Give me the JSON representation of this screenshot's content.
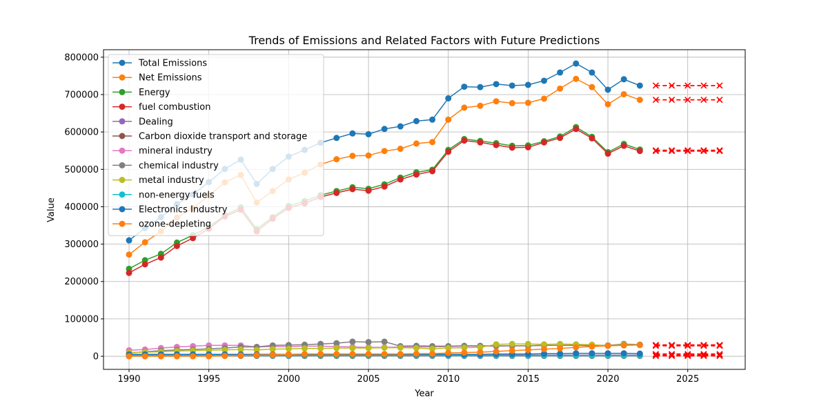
{
  "chart_data": {
    "type": "line",
    "title": "Trends of Emissions and Related Factors with Future Predictions",
    "xlabel": "Year",
    "ylabel": "Value",
    "xlim": [
      1988.4,
      2028.6
    ],
    "ylim": [
      -35000,
      820000
    ],
    "grid": true,
    "legend_position": "upper-left",
    "x_ticks": [
      1990,
      1995,
      2000,
      2005,
      2010,
      2015,
      2020,
      2025
    ],
    "y_ticks": [
      0,
      100000,
      200000,
      300000,
      400000,
      500000,
      600000,
      700000,
      800000
    ],
    "x_tick_labels": [
      "1990",
      "1995",
      "2000",
      "2005",
      "2010",
      "2015",
      "2020",
      "2025"
    ],
    "y_tick_labels": [
      "0",
      "100000",
      "200000",
      "300000",
      "400000",
      "500000",
      "600000",
      "700000",
      "800000"
    ],
    "years": [
      1990,
      1991,
      1992,
      1993,
      1994,
      1995,
      1996,
      1997,
      1998,
      1999,
      2000,
      2001,
      2002,
      2003,
      2004,
      2005,
      2006,
      2007,
      2008,
      2009,
      2010,
      2011,
      2012,
      2013,
      2014,
      2015,
      2016,
      2017,
      2018,
      2019,
      2020,
      2021,
      2022
    ],
    "prediction_years": [
      2023,
      2024,
      2025,
      2026,
      2027
    ],
    "prediction_color": "#ff0000",
    "series": [
      {
        "name": "Total Emissions",
        "color": "#1f77b4",
        "values": [
          310000,
          343000,
          372000,
          407000,
          433000,
          466000,
          501000,
          526000,
          461000,
          501000,
          534000,
          552000,
          571000,
          584000,
          596000,
          594000,
          608000,
          615000,
          629000,
          633000,
          690000,
          721000,
          720000,
          728000,
          724000,
          726000,
          737000,
          759000,
          783000,
          759000,
          713000,
          741000,
          724000
        ],
        "prediction": [
          724000,
          724000,
          724000,
          724000,
          724000
        ]
      },
      {
        "name": "Net Emissions",
        "color": "#ff7f0e",
        "values": [
          272000,
          305000,
          334000,
          371000,
          396000,
          430000,
          465000,
          485000,
          411000,
          442000,
          473000,
          491000,
          513000,
          527000,
          536000,
          537000,
          549000,
          555000,
          569000,
          573000,
          633000,
          665000,
          670000,
          682000,
          677000,
          678000,
          689000,
          716000,
          742000,
          720000,
          674000,
          701000,
          686000
        ],
        "prediction": [
          686000,
          686000,
          686000,
          686000,
          686000
        ]
      },
      {
        "name": "Energy",
        "color": "#2ca02c",
        "values": [
          234000,
          257000,
          274000,
          304000,
          324000,
          346000,
          377000,
          398000,
          340000,
          372000,
          402000,
          415000,
          431000,
          442000,
          452000,
          448000,
          460000,
          478000,
          492000,
          499000,
          552000,
          581000,
          576000,
          570000,
          563000,
          564000,
          575000,
          588000,
          613000,
          587000,
          546000,
          568000,
          553000
        ],
        "prediction": [
          551000,
          551000,
          551000,
          551000,
          551000
        ]
      },
      {
        "name": "fuel combustion",
        "color": "#d62728",
        "values": [
          223000,
          246000,
          264000,
          295000,
          316000,
          341000,
          374000,
          392000,
          334000,
          368000,
          397000,
          409000,
          426000,
          437000,
          447000,
          443000,
          454000,
          473000,
          486000,
          495000,
          547000,
          577000,
          572000,
          565000,
          558000,
          559000,
          572000,
          584000,
          608000,
          583000,
          542000,
          563000,
          549000
        ],
        "prediction": [
          549000,
          549000,
          549000,
          549000,
          549000
        ]
      },
      {
        "name": "Dealing",
        "color": "#9467bd",
        "values": [
          3000,
          3000,
          3000,
          3000,
          3000,
          3000,
          3000,
          3000,
          3000,
          3000,
          3000,
          3000,
          3000,
          3000,
          3000,
          3000,
          3000,
          3000,
          3000,
          3000,
          3000,
          3000,
          3000,
          3000,
          3000,
          3000,
          3000,
          3000,
          3000,
          3000,
          3000,
          3000,
          3000
        ],
        "prediction": [
          3000,
          3000,
          3000,
          3000,
          3000
        ]
      },
      {
        "name": "Carbon dioxide transport and storage",
        "color": "#8c564b",
        "values": [
          1000,
          1000,
          1000,
          1000,
          1000,
          1000,
          1000,
          1000,
          1000,
          1000,
          1000,
          1000,
          1000,
          1000,
          1000,
          1000,
          1000,
          1000,
          1000,
          1000,
          1000,
          1000,
          1000,
          1000,
          1000,
          1000,
          1000,
          1000,
          1000,
          1000,
          1000,
          1000,
          1000
        ],
        "prediction": [
          1000,
          1000,
          1000,
          1000,
          1000
        ]
      },
      {
        "name": "mineral industry",
        "color": "#e377c2",
        "values": [
          16000,
          18000,
          22000,
          25000,
          27000,
          29000,
          29000,
          29000,
          25000,
          26000,
          26000,
          27000,
          27000,
          26000,
          25000,
          24000,
          24000,
          25000,
          25000,
          25000,
          26000,
          27000,
          27000,
          27000,
          28000,
          28000,
          29000,
          29000,
          30000,
          30000,
          29000,
          31000,
          31000
        ],
        "prediction": [
          30000,
          30000,
          30000,
          30000,
          30000
        ]
      },
      {
        "name": "chemical industry",
        "color": "#7f7f7f",
        "values": [
          9000,
          12000,
          15000,
          17000,
          18000,
          20000,
          22000,
          25000,
          25000,
          29000,
          30000,
          31000,
          33000,
          35000,
          39000,
          38000,
          39000,
          27000,
          28000,
          27000,
          27000,
          28000,
          28000,
          28000,
          28000,
          28000,
          29000,
          29000,
          29000,
          28000,
          29000,
          33000,
          31000
        ],
        "prediction": [
          30000,
          30000,
          30000,
          30000,
          30000
        ]
      },
      {
        "name": "metal industry",
        "color": "#bcbd22",
        "values": [
          10000,
          11000,
          12000,
          14000,
          15000,
          16000,
          17000,
          18000,
          17000,
          19000,
          20000,
          21000,
          21000,
          22000,
          22000,
          22000,
          23000,
          23000,
          22000,
          20000,
          22000,
          23000,
          24000,
          32000,
          33000,
          33000,
          32000,
          33000,
          32000,
          31000,
          28000,
          31000,
          30000
        ],
        "prediction": [
          28000,
          28000,
          28000,
          28000,
          28000
        ]
      },
      {
        "name": "non-energy fuels",
        "color": "#17becf",
        "values": [
          2000,
          2000,
          2000,
          2000,
          2000,
          2000,
          2000,
          2000,
          2000,
          2000,
          2000,
          2000,
          2000,
          2000,
          2000,
          2000,
          2000,
          2000,
          2000,
          2000,
          2000,
          2000,
          2000,
          2000,
          2000,
          2000,
          2000,
          2000,
          2000,
          2000,
          2000,
          2000,
          2000
        ],
        "prediction": [
          2000,
          2000,
          2000,
          2000,
          2000
        ]
      },
      {
        "name": "Electronics Industry",
        "color": "#1f77b4",
        "values": [
          5000,
          5000,
          5000,
          5000,
          5000,
          5000,
          5000,
          5000,
          5000,
          5000,
          5000,
          5000,
          5000,
          5000,
          5000,
          5000,
          5000,
          5000,
          5000,
          5000,
          5000,
          5000,
          5000,
          6000,
          6000,
          6000,
          7000,
          7000,
          8000,
          8000,
          8000,
          8000,
          7000
        ],
        "prediction": [
          6000,
          6000,
          6000,
          6000,
          6000
        ]
      },
      {
        "name": "ozone-depleting",
        "color": "#ff7f0e",
        "values": [
          0,
          0,
          0,
          0,
          0,
          0,
          1000,
          2000,
          3000,
          4000,
          5000,
          6000,
          6000,
          6000,
          6000,
          6000,
          6000,
          6000,
          7000,
          7000,
          9000,
          10000,
          11000,
          13000,
          15000,
          17000,
          19000,
          21000,
          24000,
          26000,
          28000,
          29000,
          30000
        ],
        "prediction": [
          30000,
          30000,
          30000,
          30000,
          30000
        ]
      }
    ]
  }
}
